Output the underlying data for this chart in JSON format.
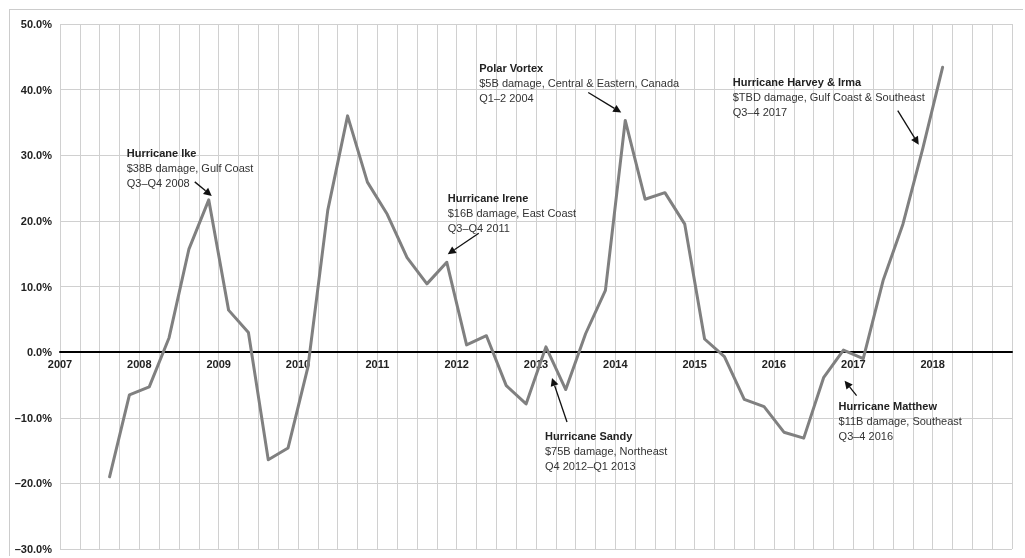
{
  "chart_data": {
    "type": "line",
    "x": [
      2007.625,
      2007.875,
      2008.125,
      2008.375,
      2008.625,
      2008.875,
      2009.125,
      2009.375,
      2009.625,
      2009.875,
      2010.125,
      2010.375,
      2010.625,
      2010.875,
      2011.125,
      2011.375,
      2011.625,
      2011.875,
      2012.125,
      2012.375,
      2012.625,
      2012.875,
      2013.125,
      2013.375,
      2013.625,
      2013.875,
      2014.125,
      2014.375,
      2014.625,
      2014.875,
      2015.125,
      2015.375,
      2015.625,
      2015.875,
      2016.125,
      2016.375,
      2016.625,
      2016.875,
      2017.125,
      2017.375,
      2017.625,
      2017.875,
      2018.125
    ],
    "series": [
      {
        "color": "#808080",
        "values": [
          -19.0,
          -6.5,
          -5.3,
          2.2,
          15.7,
          23.2,
          6.4,
          3.0,
          -16.4,
          -14.6,
          -2.3,
          21.6,
          36.0,
          25.9,
          21.0,
          14.4,
          10.4,
          13.7,
          1.1,
          2.5,
          -5.1,
          -7.9,
          0.8,
          -5.7,
          2.8,
          9.4,
          35.3,
          23.3,
          24.3,
          19.5,
          2.0,
          -0.7,
          -7.2,
          -8.3,
          -12.2,
          -13.1,
          -3.9,
          0.3,
          -1.0,
          10.9,
          19.5,
          31.0,
          43.4
        ]
      }
    ],
    "xlim": [
      2007,
      2019
    ],
    "xticks": [
      2007,
      {
        "value": 2007.25,
        "label": null
      },
      {
        "value": 2007.5,
        "label": null
      },
      {
        "value": 2007.75,
        "label": null
      },
      2008,
      {
        "value": 2008.25,
        "label": null
      },
      {
        "value": 2008.5,
        "label": null
      },
      {
        "value": 2008.75,
        "label": null
      },
      2009,
      {
        "value": 2009.25,
        "label": null
      },
      {
        "value": 2009.5,
        "label": null
      },
      {
        "value": 2009.75,
        "label": null
      },
      2010,
      {
        "value": 2010.25,
        "label": null
      },
      {
        "value": 2010.5,
        "label": null
      },
      {
        "value": 2010.75,
        "label": null
      },
      2011,
      {
        "value": 2011.25,
        "label": null
      },
      {
        "value": 2011.5,
        "label": null
      },
      {
        "value": 2011.75,
        "label": null
      },
      2012,
      {
        "value": 2012.25,
        "label": null
      },
      {
        "value": 2012.5,
        "label": null
      },
      {
        "value": 2012.75,
        "label": null
      },
      2013,
      {
        "value": 2013.25,
        "label": null
      },
      {
        "value": 2013.5,
        "label": null
      },
      {
        "value": 2013.75,
        "label": null
      },
      2014,
      {
        "value": 2014.25,
        "label": null
      },
      {
        "value": 2014.5,
        "label": null
      },
      {
        "value": 2014.75,
        "label": null
      },
      2015,
      {
        "value": 2015.25,
        "label": null
      },
      {
        "value": 2015.5,
        "label": null
      },
      {
        "value": 2015.75,
        "label": null
      },
      2016,
      {
        "value": 2016.25,
        "label": null
      },
      {
        "value": 2016.5,
        "label": null
      },
      {
        "value": 2016.75,
        "label": null
      },
      2017,
      {
        "value": 2017.25,
        "label": null
      },
      {
        "value": 2017.5,
        "label": null
      },
      {
        "value": 2017.75,
        "label": null
      },
      2018,
      {
        "value": 2018.25,
        "label": null
      },
      {
        "value": 2018.5,
        "label": null
      },
      {
        "value": 2018.75,
        "label": null
      },
      {
        "value": 2019,
        "label": null
      }
    ],
    "ylim": [
      -30,
      50
    ],
    "yticks": [
      {
        "value": -30,
        "label": "–30.0%"
      },
      {
        "value": -20,
        "label": "–20.0%"
      },
      {
        "value": -10,
        "label": "–10.0%"
      },
      {
        "value": 0,
        "label": "0.0%"
      },
      {
        "value": 10,
        "label": "10.0%"
      },
      {
        "value": 20,
        "label": "20.0%"
      },
      {
        "value": 30,
        "label": "30.0%"
      },
      {
        "value": 40,
        "label": "40.0%"
      },
      {
        "value": 50,
        "label": "50.0%"
      }
    ],
    "grid": true,
    "marker": "none",
    "line_style": "solid",
    "annotations": [
      {
        "text": "Hurricane Ike\n$38B damage, Gulf Coast\nQ3–Q4 2008",
        "x": 2008.875,
        "y": 23.2
      },
      {
        "text": "Hurricane Irene\n$16B damage, East Coast\nQ3–Q4 2011",
        "x": 2011.875,
        "y": 13.7
      },
      {
        "text": "Polar Vortex\n$5B damage, Central & Eastern, Canada\nQ1–2 2004",
        "x": 2014.125,
        "y": 35.3
      },
      {
        "text": "Hurricane Harvey & Irma\n$TBD damage, Gulf Coast & Southeast\nQ3–4 2017",
        "x": 2017.875,
        "y": 31.0
      },
      "Hurricane Sandy\n$75B damage, Northeast\nQ4 2012–Q1 2013",
      {
        "text": "Hurricane Matthew\n$11B damage, Southeast\nQ3–4 2016",
        "x": 2016.625,
        "y": -3.9
      }
    ]
  }
}
